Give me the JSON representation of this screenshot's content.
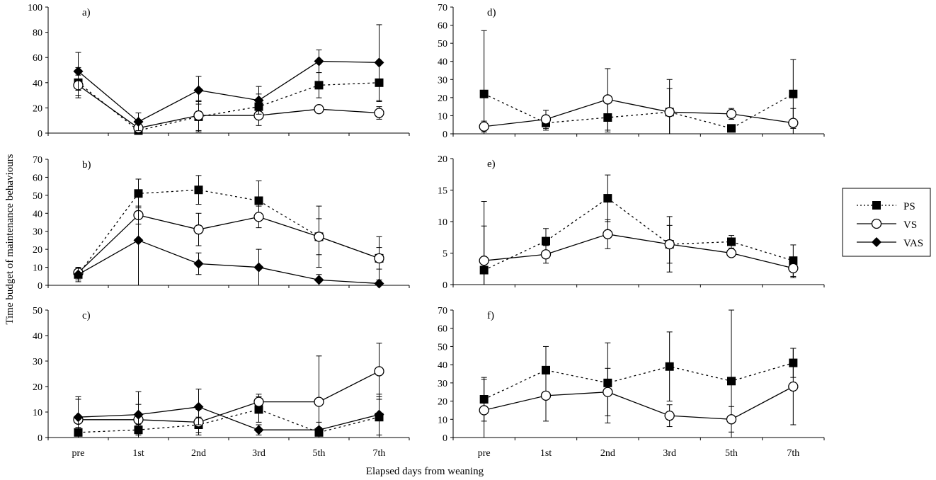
{
  "figure": {
    "ylabel": "Time budget of maintenance behaviours",
    "xlabel": "Elapsed days from weaning"
  },
  "legend": {
    "placement": "right",
    "items": [
      {
        "name": "PS",
        "line": "dotted",
        "marker": "square-filled"
      },
      {
        "name": "VS",
        "line": "solid",
        "marker": "circle-open"
      },
      {
        "name": "VAS",
        "line": "solid",
        "marker": "diamond-filled"
      }
    ]
  },
  "chart_data": [
    {
      "type": "line",
      "panel": "a)",
      "categories": [
        "pre",
        "1st",
        "2nd",
        "3rd",
        "5th",
        "7th"
      ],
      "ylim": [
        0,
        100
      ],
      "yticks": [
        0,
        20,
        40,
        60,
        80,
        100
      ],
      "series": [
        {
          "name": "PS",
          "values": [
            40,
            2,
            13,
            21,
            38,
            40
          ],
          "err": [
            12,
            3,
            12,
            10,
            10,
            15
          ]
        },
        {
          "name": "VS",
          "values": [
            38,
            4,
            14,
            14,
            19,
            16
          ],
          "err": [
            8,
            3,
            12,
            8,
            3,
            5
          ]
        },
        {
          "name": "VAS",
          "values": [
            49,
            9,
            34,
            26,
            57,
            56
          ],
          "err": [
            15,
            7,
            11,
            11,
            9,
            30
          ]
        }
      ]
    },
    {
      "type": "line",
      "panel": "b)",
      "categories": [
        "pre",
        "1st",
        "2nd",
        "3rd",
        "5th",
        "7th"
      ],
      "ylim": [
        0,
        70
      ],
      "yticks": [
        0,
        10,
        20,
        30,
        40,
        50,
        60,
        70
      ],
      "series": [
        {
          "name": "PS",
          "values": [
            6,
            51,
            53,
            47,
            27,
            15
          ],
          "err": [
            3,
            8,
            8,
            11,
            17,
            12
          ]
        },
        {
          "name": "VS",
          "values": [
            7,
            39,
            31,
            38,
            27,
            15
          ],
          "err": [
            3,
            5,
            9,
            6,
            10,
            6
          ]
        },
        {
          "name": "VAS",
          "values": [
            6,
            25,
            12,
            10,
            3,
            1
          ],
          "err": [
            4,
            25,
            6,
            10,
            3,
            1
          ]
        }
      ]
    },
    {
      "type": "line",
      "panel": "c)",
      "categories": [
        "pre",
        "1st",
        "2nd",
        "3rd",
        "5th",
        "7th"
      ],
      "ylim": [
        0,
        50
      ],
      "yticks": [
        0,
        10,
        20,
        30,
        40,
        50
      ],
      "series": [
        {
          "name": "PS",
          "values": [
            2,
            3,
            5,
            11,
            2,
            8
          ],
          "err": [
            2,
            2,
            3,
            5,
            2,
            8
          ]
        },
        {
          "name": "VS",
          "values": [
            7,
            7,
            6,
            14,
            14,
            26
          ],
          "err": [
            8,
            6,
            5,
            3,
            18,
            11
          ]
        },
        {
          "name": "VAS",
          "values": [
            8,
            9,
            12,
            3,
            3,
            9
          ],
          "err": [
            8,
            9,
            7,
            2,
            3,
            8
          ]
        }
      ]
    },
    {
      "type": "line",
      "panel": "d)",
      "categories": [
        "pre",
        "1st",
        "2nd",
        "3rd",
        "5th",
        "7th"
      ],
      "ylim": [
        0,
        70
      ],
      "yticks": [
        0,
        10,
        20,
        30,
        40,
        50,
        60,
        70
      ],
      "series": [
        {
          "name": "PS",
          "values": [
            22,
            6,
            9,
            12,
            3,
            22
          ],
          "err": [
            35,
            4,
            8,
            13,
            2,
            19
          ]
        },
        {
          "name": "VS",
          "values": [
            4,
            8,
            19,
            12,
            11,
            6
          ],
          "err": [
            3,
            5,
            17,
            18,
            3,
            8
          ]
        }
      ]
    },
    {
      "type": "line",
      "panel": "e)",
      "categories": [
        "pre",
        "1st",
        "2nd",
        "3rd",
        "5th",
        "7th"
      ],
      "ylim": [
        0,
        20
      ],
      "yticks": [
        0,
        5,
        10,
        15,
        20
      ],
      "series": [
        {
          "name": "PS",
          "values": [
            2.3,
            6.9,
            13.7,
            6.4,
            6.8,
            3.8
          ],
          "err": [
            7,
            2,
            3.7,
            4.4,
            1,
            2.5
          ]
        },
        {
          "name": "VS",
          "values": [
            3.8,
            4.8,
            8,
            6.4,
            5,
            2.6
          ],
          "err": [
            9.4,
            1.4,
            2.3,
            3,
            0.6,
            1.5
          ]
        }
      ]
    },
    {
      "type": "line",
      "panel": "f)",
      "categories": [
        "pre",
        "1st",
        "2nd",
        "3rd",
        "5th",
        "7th"
      ],
      "ylim": [
        0,
        70
      ],
      "yticks": [
        0,
        10,
        20,
        30,
        40,
        50,
        60,
        70
      ],
      "series": [
        {
          "name": "PS",
          "values": [
            21,
            37,
            30,
            39,
            31,
            41
          ],
          "err": [
            12,
            13,
            22,
            19,
            39,
            8
          ]
        },
        {
          "name": "VS",
          "values": [
            15,
            23,
            25,
            12,
            10,
            28
          ],
          "err": [
            17,
            14,
            13,
            6,
            7,
            21
          ]
        }
      ]
    }
  ]
}
